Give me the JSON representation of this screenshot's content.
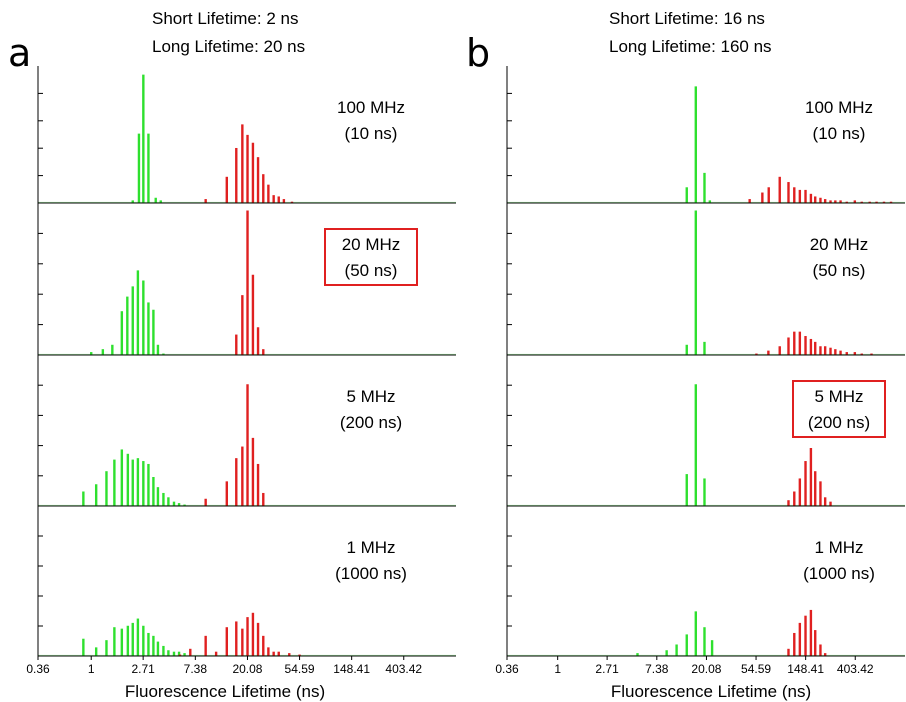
{
  "colors": {
    "short": "#2ee02e",
    "long": "#e02020",
    "highlight": "#e02020"
  },
  "chart_data": [
    {
      "panel_label": "a",
      "type": "bar",
      "header": [
        "Short Lifetime: 2 ns",
        "Long Lifetime: 20 ns"
      ],
      "xscale": "log",
      "xlim": [
        0.36,
        1100
      ],
      "xticks": [
        "0.36",
        "1",
        "2.71",
        "7.38",
        "20.08",
        "54.59",
        "148.41",
        "403.42"
      ],
      "xlabel": "Fluorescence Lifetime (ns)",
      "series_colors": {
        "short": "green",
        "long": "red"
      },
      "subplots": [
        {
          "label": "100 MHz",
          "sublabel": "(10 ns)",
          "highlighted": false,
          "short": [
            [
              2.22,
              0.02
            ],
            [
              2.5,
              0.53
            ],
            [
              2.72,
              0.98
            ],
            [
              3.0,
              0.53
            ],
            [
              3.45,
              0.04
            ],
            [
              3.8,
              0.02
            ]
          ],
          "long": [
            [
              9.0,
              0.03
            ],
            [
              13.5,
              0.2
            ],
            [
              16.2,
              0.42
            ],
            [
              18.2,
              0.6
            ],
            [
              20.1,
              0.52
            ],
            [
              22.3,
              0.46
            ],
            [
              24.6,
              0.35
            ],
            [
              27.2,
              0.22
            ],
            [
              30.0,
              0.14
            ],
            [
              33.2,
              0.06
            ],
            [
              36.6,
              0.05
            ],
            [
              40.4,
              0.03
            ],
            [
              47.2,
              0.01
            ]
          ]
        },
        {
          "label": "20 MHz",
          "sublabel": "(50 ns)",
          "highlighted": true,
          "short": [
            [
              1.0,
              0.02
            ],
            [
              1.25,
              0.04
            ],
            [
              1.5,
              0.07
            ],
            [
              1.8,
              0.3
            ],
            [
              2.0,
              0.4
            ],
            [
              2.22,
              0.47
            ],
            [
              2.45,
              0.58
            ],
            [
              2.72,
              0.51
            ],
            [
              3.0,
              0.36
            ],
            [
              3.3,
              0.31
            ],
            [
              3.6,
              0.07
            ],
            [
              4.0,
              0.01
            ]
          ],
          "long": [
            [
              16.2,
              0.14
            ],
            [
              18.2,
              0.41
            ],
            [
              20.1,
              0.99
            ],
            [
              22.3,
              0.55
            ],
            [
              24.6,
              0.19
            ],
            [
              27.2,
              0.04
            ]
          ]
        },
        {
          "label": "5 MHz",
          "sublabel": "(200 ns)",
          "highlighted": false,
          "short": [
            [
              0.86,
              0.1
            ],
            [
              1.1,
              0.15
            ],
            [
              1.34,
              0.24
            ],
            [
              1.56,
              0.32
            ],
            [
              1.8,
              0.39
            ],
            [
              2.02,
              0.36
            ],
            [
              2.22,
              0.32
            ],
            [
              2.45,
              0.33
            ],
            [
              2.72,
              0.31
            ],
            [
              3.0,
              0.29
            ],
            [
              3.3,
              0.2
            ],
            [
              3.6,
              0.13
            ],
            [
              4.0,
              0.09
            ],
            [
              4.4,
              0.06
            ],
            [
              4.9,
              0.03
            ],
            [
              5.4,
              0.02
            ],
            [
              6.0,
              0.01
            ]
          ],
          "long": [
            [
              9.0,
              0.05
            ],
            [
              13.5,
              0.17
            ],
            [
              16.2,
              0.33
            ],
            [
              18.2,
              0.41
            ],
            [
              20.1,
              0.84
            ],
            [
              22.3,
              0.47
            ],
            [
              24.6,
              0.29
            ],
            [
              27.2,
              0.09
            ]
          ]
        },
        {
          "label": "1 MHz",
          "sublabel": "(1000 ns)",
          "highlighted": false,
          "short": [
            [
              0.86,
              0.12
            ],
            [
              1.1,
              0.06
            ],
            [
              1.34,
              0.11
            ],
            [
              1.56,
              0.2
            ],
            [
              1.8,
              0.19
            ],
            [
              2.02,
              0.21
            ],
            [
              2.22,
              0.23
            ],
            [
              2.45,
              0.26
            ],
            [
              2.72,
              0.21
            ],
            [
              3.0,
              0.16
            ],
            [
              3.3,
              0.14
            ],
            [
              3.6,
              0.1
            ],
            [
              4.0,
              0.07
            ],
            [
              4.4,
              0.04
            ],
            [
              4.9,
              0.03
            ],
            [
              5.4,
              0.03
            ],
            [
              6.0,
              0.02
            ]
          ],
          "long": [
            [
              5.5,
              0.01
            ],
            [
              6.7,
              0.05
            ],
            [
              9.0,
              0.14
            ],
            [
              11.0,
              0.03
            ],
            [
              13.5,
              0.2
            ],
            [
              16.2,
              0.24
            ],
            [
              18.2,
              0.19
            ],
            [
              20.1,
              0.27
            ],
            [
              22.3,
              0.3
            ],
            [
              24.6,
              0.23
            ],
            [
              27.2,
              0.14
            ],
            [
              30.0,
              0.06
            ],
            [
              33.2,
              0.03
            ],
            [
              36.6,
              0.03
            ],
            [
              44.8,
              0.02
            ],
            [
              54.6,
              0.01
            ]
          ]
        }
      ]
    },
    {
      "panel_label": "b",
      "type": "bar",
      "header": [
        "Short Lifetime: 16 ns",
        "Long Lifetime: 160 ns"
      ],
      "xscale": "log",
      "xlim": [
        0.36,
        1100
      ],
      "xticks": [
        "0.36",
        "1",
        "2.71",
        "7.38",
        "20.08",
        "54.59",
        "148.41",
        "403.42"
      ],
      "xlabel": "Fluorescence Lifetime (ns)",
      "series_colors": {
        "short": "green",
        "long": "red"
      },
      "subplots": [
        {
          "label": "100 MHz",
          "sublabel": "(10 ns)",
          "highlighted": false,
          "short": [
            [
              13.5,
              0.12
            ],
            [
              16.2,
              0.89
            ],
            [
              19.3,
              0.23
            ],
            [
              21.5,
              0.02
            ]
          ],
          "long": [
            [
              48.0,
              0.03
            ],
            [
              62.0,
              0.08
            ],
            [
              70.5,
              0.12
            ],
            [
              88.0,
              0.2
            ],
            [
              105.0,
              0.16
            ],
            [
              118.0,
              0.12
            ],
            [
              132.0,
              0.1
            ],
            [
              148.0,
              0.1
            ],
            [
              165.0,
              0.07
            ],
            [
              180.0,
              0.05
            ],
            [
              200.0,
              0.04
            ],
            [
              220.0,
              0.03
            ],
            [
              245.0,
              0.02
            ],
            [
              270.0,
              0.02
            ],
            [
              300.0,
              0.02
            ],
            [
              340.0,
              0.01
            ],
            [
              400.0,
              0.02
            ],
            [
              460.0,
              0.01
            ],
            [
              540.0,
              0.01
            ],
            [
              620.0,
              0.01
            ],
            [
              720.0,
              0.01
            ],
            [
              830.0,
              0.01
            ]
          ]
        },
        {
          "label": "20 MHz",
          "sublabel": "(50 ns)",
          "highlighted": false,
          "short": [
            [
              13.5,
              0.07
            ],
            [
              16.2,
              0.99
            ],
            [
              19.3,
              0.09
            ]
          ],
          "long": [
            [
              55.0,
              0.01
            ],
            [
              70.0,
              0.03
            ],
            [
              88.0,
              0.06
            ],
            [
              105.0,
              0.12
            ],
            [
              118.0,
              0.16
            ],
            [
              132.0,
              0.16
            ],
            [
              148.0,
              0.13
            ],
            [
              165.0,
              0.11
            ],
            [
              180.0,
              0.09
            ],
            [
              200.0,
              0.06
            ],
            [
              220.0,
              0.06
            ],
            [
              245.0,
              0.05
            ],
            [
              270.0,
              0.04
            ],
            [
              300.0,
              0.03
            ],
            [
              340.0,
              0.02
            ],
            [
              400.0,
              0.02
            ],
            [
              460.0,
              0.01
            ],
            [
              560.0,
              0.01
            ]
          ]
        },
        {
          "label": "5 MHz",
          "sublabel": "(200 ns)",
          "highlighted": true,
          "short": [
            [
              13.5,
              0.22
            ],
            [
              16.2,
              0.84
            ],
            [
              19.3,
              0.19
            ]
          ],
          "long": [
            [
              105.0,
              0.04
            ],
            [
              118.0,
              0.1
            ],
            [
              132.0,
              0.19
            ],
            [
              148.0,
              0.31
            ],
            [
              165.0,
              0.4
            ],
            [
              180.0,
              0.24
            ],
            [
              200.0,
              0.17
            ],
            [
              220.0,
              0.06
            ],
            [
              245.0,
              0.03
            ]
          ]
        },
        {
          "label": "1 MHz",
          "sublabel": "(1000 ns)",
          "highlighted": false,
          "short": [
            [
              5.0,
              0.02
            ],
            [
              9.0,
              0.04
            ],
            [
              11.0,
              0.08
            ],
            [
              13.5,
              0.15
            ],
            [
              16.2,
              0.31
            ],
            [
              19.3,
              0.2
            ],
            [
              22.5,
              0.11
            ]
          ],
          "long": [
            [
              105.0,
              0.05
            ],
            [
              118.0,
              0.16
            ],
            [
              132.0,
              0.23
            ],
            [
              148.0,
              0.28
            ],
            [
              165.0,
              0.32
            ],
            [
              180.0,
              0.18
            ],
            [
              200.0,
              0.08
            ],
            [
              220.0,
              0.02
            ]
          ]
        }
      ]
    }
  ]
}
